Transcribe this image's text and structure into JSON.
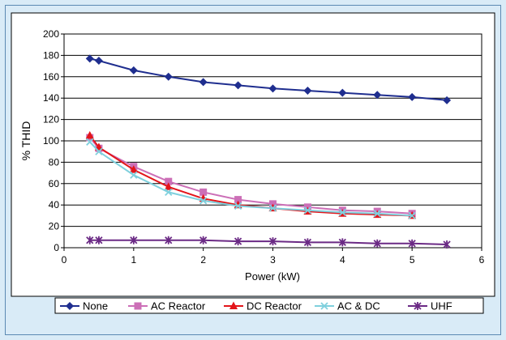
{
  "chart_data": {
    "type": "line",
    "xlabel": "Power (kW)",
    "ylabel": "% THID",
    "xlim": [
      0,
      6
    ],
    "ylim": [
      0,
      200
    ],
    "xticks": [
      0,
      1,
      2,
      3,
      4,
      5,
      6
    ],
    "yticks": [
      0,
      20,
      40,
      60,
      80,
      100,
      120,
      140,
      160,
      180,
      200
    ],
    "grid": "horizontal",
    "legend": "bottom",
    "series": [
      {
        "name": "None",
        "color": "#1f2e8f",
        "marker": "diamond",
        "x": [
          0.37,
          0.5,
          1,
          1.5,
          2,
          2.5,
          3,
          3.5,
          4,
          4.5,
          5,
          5.5
        ],
        "y": [
          177,
          175,
          166,
          160,
          155,
          152,
          149,
          147,
          145,
          143,
          141,
          138
        ]
      },
      {
        "name": "AC Reactor",
        "color": "#cc6fb7",
        "marker": "square",
        "x": [
          0.37,
          0.5,
          1,
          1.5,
          2,
          2.5,
          3,
          3.5,
          4,
          4.5,
          5
        ],
        "y": [
          103,
          93,
          76,
          62,
          52,
          45,
          41,
          38,
          35,
          34,
          32
        ]
      },
      {
        "name": "DC Reactor",
        "color": "#e3151a",
        "marker": "triangle",
        "x": [
          0.37,
          0.5,
          1,
          1.5,
          2,
          2.5,
          3,
          3.5,
          4,
          4.5,
          5
        ],
        "y": [
          105,
          94,
          73,
          57,
          46,
          40,
          37,
          34,
          32,
          31,
          30
        ]
      },
      {
        "name": "AC & DC",
        "color": "#7fd0dd",
        "marker": "x",
        "x": [
          0.37,
          0.5,
          1,
          1.5,
          2,
          2.5,
          3,
          3.5,
          4,
          4.5,
          5
        ],
        "y": [
          99,
          90,
          68,
          52,
          44,
          39,
          37,
          35,
          33,
          32,
          30
        ]
      },
      {
        "name": "UHF",
        "color": "#6b2a85",
        "marker": "star",
        "x": [
          0.37,
          0.5,
          1,
          1.5,
          2,
          2.5,
          3,
          3.5,
          4,
          4.5,
          5,
          5.5
        ],
        "y": [
          7,
          7,
          7,
          7,
          7,
          6,
          6,
          5,
          5,
          4,
          4,
          3
        ]
      }
    ]
  }
}
